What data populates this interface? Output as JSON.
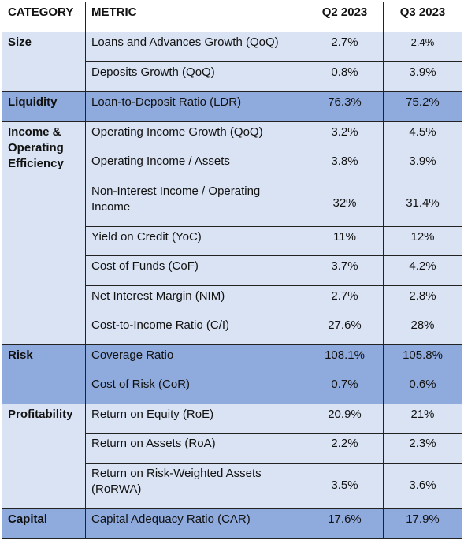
{
  "headers": {
    "category": "CATEGORY",
    "metric": "METRIC",
    "q2": "Q2 2023",
    "q3": "Q3 2023"
  },
  "rows": [
    {
      "category": "Size",
      "metric": "Loans and Advances Growth (QoQ)",
      "q2": "2.7%",
      "q3": "2.4%"
    },
    {
      "category": "",
      "metric": "Deposits Growth (QoQ)",
      "q2": "0.8%",
      "q3": "3.9%"
    },
    {
      "category": "Liquidity",
      "metric": "Loan-to-Deposit Ratio (LDR)",
      "q2": "76.3%",
      "q3": "75.2%"
    },
    {
      "category": "Income & Operating Efficiency",
      "metric": "Operating Income Growth (QoQ)",
      "q2": "3.2%",
      "q3": "4.5%"
    },
    {
      "category": "",
      "metric": "Operating Income / Assets",
      "q2": "3.8%",
      "q3": "3.9%"
    },
    {
      "category": "",
      "metric": "Non-Interest Income / Operating Income",
      "q2": "32%",
      "q3": "31.4%"
    },
    {
      "category": "",
      "metric": "Yield on Credit (YoC)",
      "q2": "11%",
      "q3": "12%"
    },
    {
      "category": "",
      "metric": "Cost of Funds (CoF)",
      "q2": "3.7%",
      "q3": "4.2%"
    },
    {
      "category": "",
      "metric": "Net Interest Margin (NIM)",
      "q2": "2.7%",
      "q3": "2.8%"
    },
    {
      "category": "",
      "metric": "Cost-to-Income Ratio (C/I)",
      "q2": "27.6%",
      "q3": "28%"
    },
    {
      "category": "Risk",
      "metric": "Coverage Ratio",
      "q2": "108.1%",
      "q3": "105.8%"
    },
    {
      "category": "",
      "metric": "Cost of Risk (CoR)",
      "q2": "0.7%",
      "q3": "0.6%"
    },
    {
      "category": "Profitability",
      "metric": "Return on Equity (RoE)",
      "q2": "20.9%",
      "q3": "21%"
    },
    {
      "category": "",
      "metric": "Return on Assets (RoA)",
      "q2": "2.2%",
      "q3": "2.3%"
    },
    {
      "category": "",
      "metric": "Return on Risk-Weighted Assets (RoRWA)",
      "q2": "3.5%",
      "q3": "3.6%"
    },
    {
      "category": "Capital",
      "metric": "Capital Adequacy Ratio (CAR)",
      "q2": "17.6%",
      "q3": "17.9%"
    }
  ],
  "colors": {
    "light_fill": "#dae3f3",
    "dark_fill": "#8faadc",
    "border": "#222222"
  }
}
